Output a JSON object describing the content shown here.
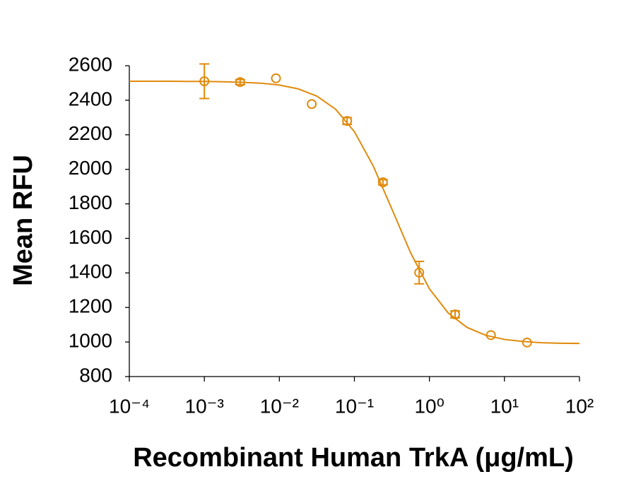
{
  "chart_data": {
    "type": "scatter",
    "x_label": "Recombinant Human TrkA (μg/mL)",
    "y_label": "Mean RFU",
    "x_scale": "log",
    "color": "#e08a0c",
    "series": [
      {
        "x": [
          0.001,
          0.003,
          0.009,
          0.027,
          0.08,
          0.24,
          0.73,
          2.2,
          6.6,
          20
        ],
        "values": [
          2510,
          2505,
          2527,
          2378,
          2280,
          1925,
          1402,
          1160,
          1040,
          997
        ],
        "errors": [
          100,
          15,
          0,
          0,
          20,
          15,
          65,
          20,
          0,
          0
        ]
      },
      {
        "type": "line",
        "x": [
          0.0001,
          0.000178,
          0.000316,
          0.000562,
          0.001,
          0.00178,
          0.00316,
          0.00562,
          0.01,
          0.0178,
          0.0316,
          0.0562,
          0.1,
          0.178,
          0.316,
          0.562,
          1,
          1.78,
          3.16,
          5.62,
          10,
          17.8,
          31.6,
          56.2,
          100
        ],
        "values": [
          2510,
          2510,
          2510,
          2509,
          2509,
          2507,
          2504,
          2499,
          2488,
          2466,
          2424,
          2348,
          2218,
          2020,
          1770,
          1516,
          1308,
          1168,
          1085,
          1039,
          1015,
          1003,
          996,
          993,
          992
        ]
      }
    ],
    "xlim": [
      0.0001,
      100
    ],
    "ylim": [
      800,
      2600
    ],
    "xticks": [
      {
        "value": 0.0001,
        "label": "10⁻⁴"
      },
      {
        "value": 0.001,
        "label": "10⁻³"
      },
      {
        "value": 0.01,
        "label": "10⁻²"
      },
      {
        "value": 0.1,
        "label": "10⁻¹"
      },
      {
        "value": 1,
        "label": "10⁰"
      },
      {
        "value": 10,
        "label": "10¹"
      },
      {
        "value": 100,
        "label": "10²"
      }
    ],
    "yticks": [
      800,
      1000,
      1200,
      1400,
      1600,
      1800,
      2000,
      2200,
      2400,
      2600
    ]
  }
}
